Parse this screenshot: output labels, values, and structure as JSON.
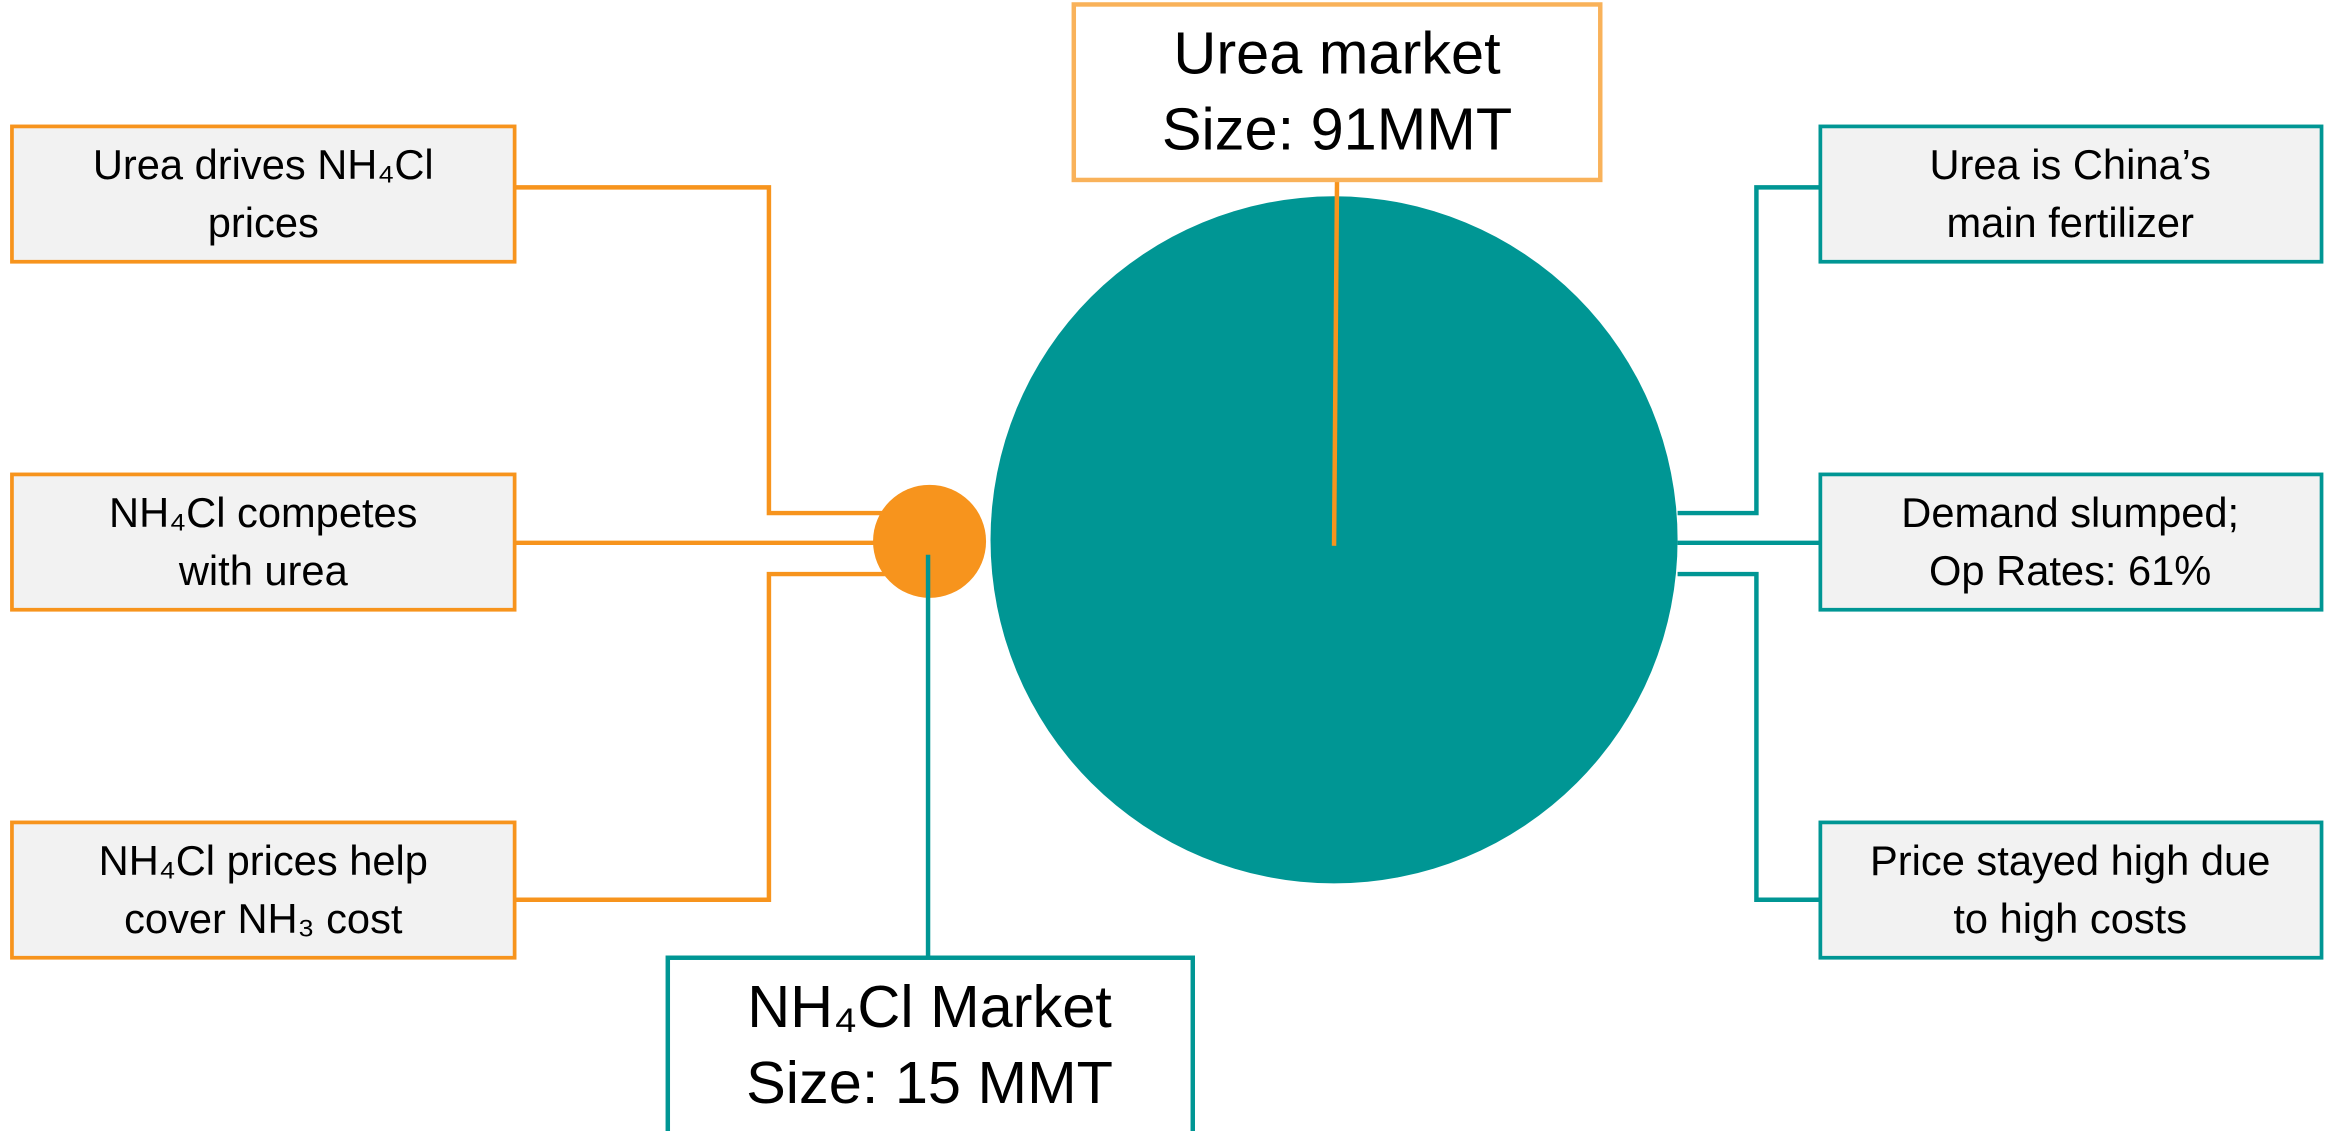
{
  "urea_market": {
    "lines": [
      "Urea market",
      "Size: 91MMT"
    ]
  },
  "nh4cl_market": {
    "lines": [
      "NH₄Cl  Market",
      "Size: 15 MMT"
    ]
  },
  "left_notes": [
    {
      "lines": [
        "Urea drives NH₄Cl",
        "prices"
      ]
    },
    {
      "lines": [
        "NH₄Cl competes",
        "with urea"
      ]
    },
    {
      "lines": [
        "NH₄Cl prices help",
        "cover NH₃ cost"
      ]
    }
  ],
  "right_notes": [
    {
      "lines": [
        "Urea is China’s",
        "main fertilizer"
      ]
    },
    {
      "lines": [
        "Demand slumped;",
        "Op Rates: 61%"
      ]
    },
    {
      "lines": [
        "Price stayed high due",
        "to high costs"
      ]
    }
  ]
}
